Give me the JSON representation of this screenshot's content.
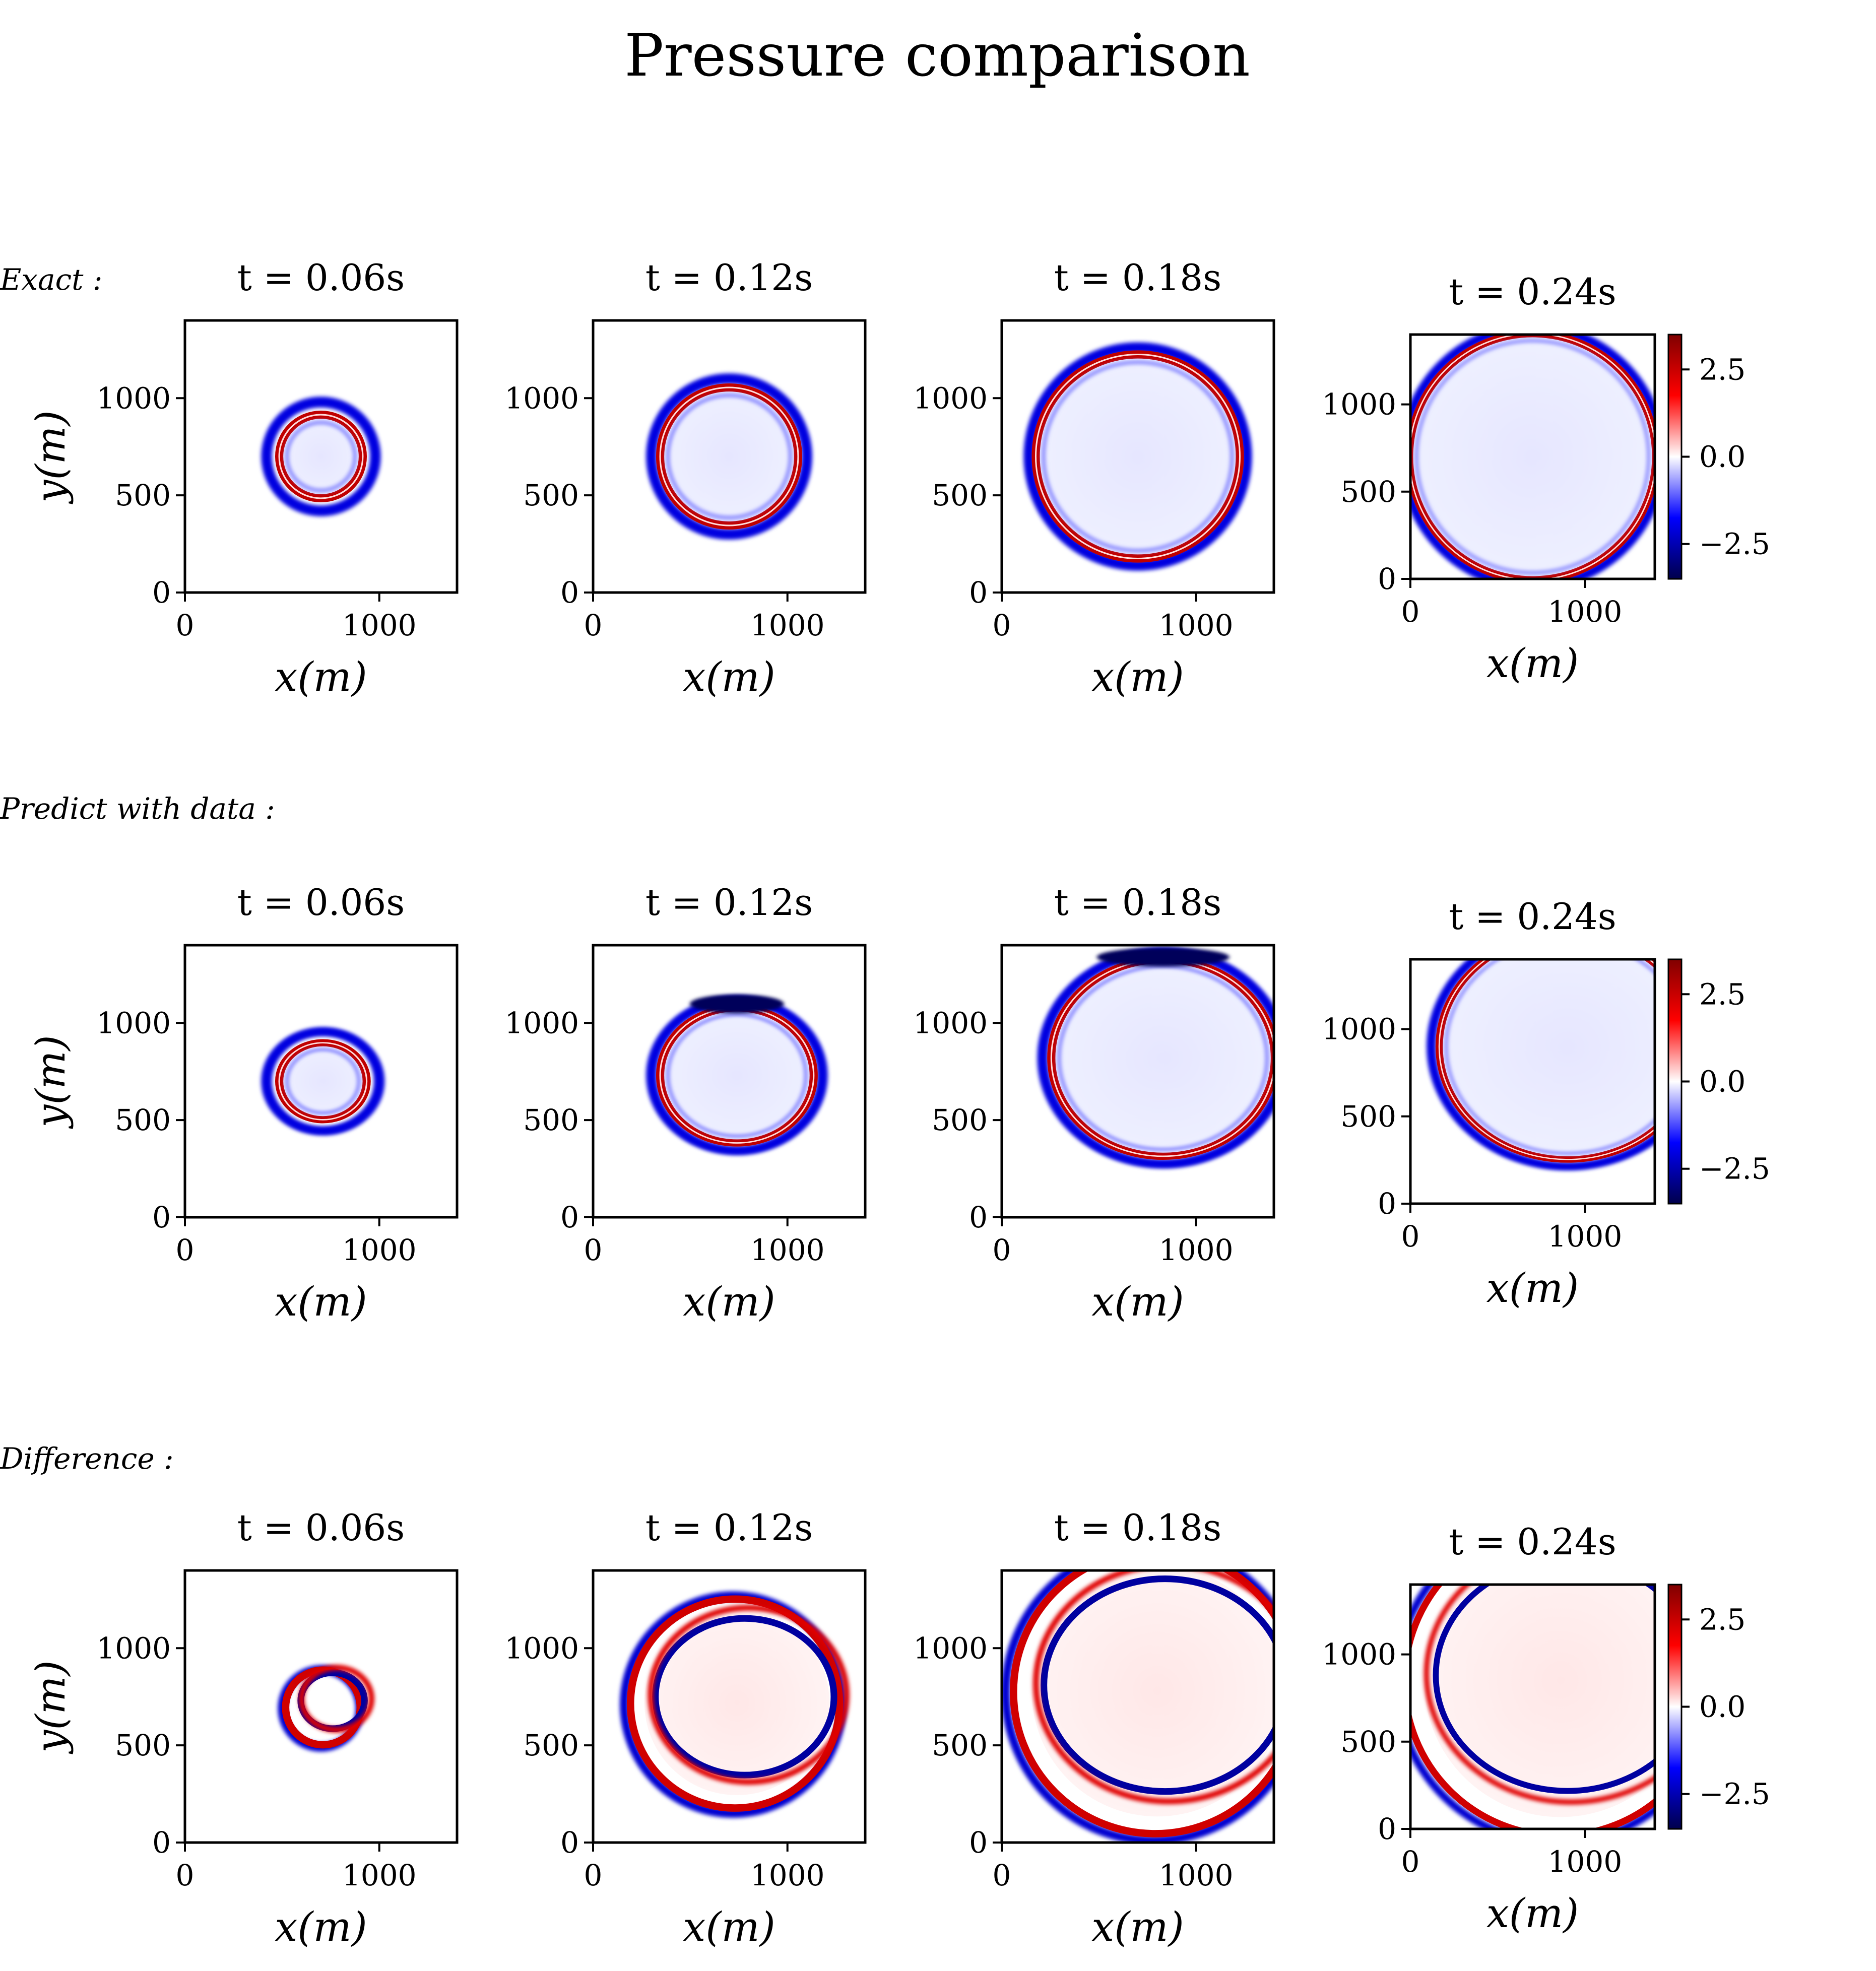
{
  "figure": {
    "title": "Pressure comparison"
  },
  "chart_data": {
    "type": "heatmap",
    "title": "Pressure comparison",
    "colormap": "seismic",
    "colors": {
      "low": "#00004c",
      "mid_low": "#0000ff",
      "zero": "#ffffff",
      "mid_high": "#ff0000",
      "high": "#800000"
    },
    "x_ticks": [
      "0",
      "1000"
    ],
    "y_ticks": [
      "0",
      "500",
      "1000"
    ],
    "xlim": [
      0,
      1400
    ],
    "ylim": [
      0,
      1400
    ],
    "xlabel": "x(m)",
    "ylabel": "y(m)",
    "colorbar": {
      "ticks": [
        "2.5",
        "0.0",
        "−2.5"
      ],
      "tick_values": [
        2.5,
        0.0,
        -2.5
      ],
      "range": [
        -3.5,
        3.5
      ]
    },
    "rows": [
      {
        "label": "Exact :",
        "panels": [
          {
            "time_label": "t = 0.06s",
            "center": [
              700,
              700
            ],
            "red_ring_radius": 200,
            "blue_ring_radius": 280,
            "interior_fill": "faint-blue"
          },
          {
            "time_label": "t = 0.12s",
            "center": [
              700,
              700
            ],
            "red_ring_radius": 340,
            "blue_ring_radius": 400,
            "interior_fill": "faint-blue"
          },
          {
            "time_label": "t = 0.18s",
            "center": [
              700,
              700
            ],
            "red_ring_radius": 510,
            "blue_ring_radius": 560,
            "interior_fill": "faint-blue"
          },
          {
            "time_label": "t = 0.24s",
            "center": [
              700,
              700
            ],
            "red_ring_radius": 690,
            "blue_ring_radius": 740,
            "interior_fill": "faint-blue"
          }
        ]
      },
      {
        "label": "Predict with data :",
        "panels": [
          {
            "time_label": "t = 0.06s",
            "center": [
              710,
              700
            ],
            "red_ring_radius": 210,
            "blue_ring_radius": 290,
            "interior_fill": "faint-blue"
          },
          {
            "time_label": "t = 0.12s",
            "center": [
              740,
              730
            ],
            "red_ring_radius": 380,
            "blue_ring_radius": 440,
            "interior_fill": "faint-blue"
          },
          {
            "time_label": "t = 0.18s",
            "center": [
              830,
              820
            ],
            "red_ring_radius": 560,
            "blue_ring_radius": 620,
            "interior_fill": "faint-blue"
          },
          {
            "time_label": "t = 0.24s",
            "center": [
              900,
              900
            ],
            "red_ring_radius": 720,
            "blue_ring_radius": 780,
            "interior_fill": "faint-blue"
          }
        ]
      },
      {
        "label": "Difference :",
        "panels": [
          {
            "time_label": "t = 0.06s",
            "center": [
              720,
              700
            ],
            "interior_fill": "white"
          },
          {
            "time_label": "t = 0.12s",
            "center": [
              740,
              720
            ],
            "interior_fill": "faint-red"
          },
          {
            "time_label": "t = 0.18s",
            "center": [
              800,
              780
            ],
            "interior_fill": "faint-red"
          },
          {
            "time_label": "t = 0.24s",
            "center": [
              860,
              850
            ],
            "interior_fill": "faint-red"
          }
        ]
      }
    ]
  }
}
